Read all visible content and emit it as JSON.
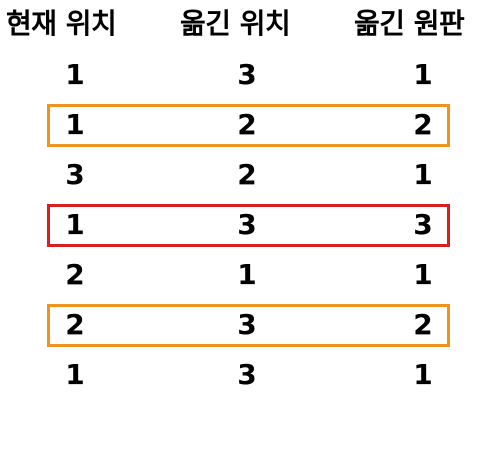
{
  "headers": [
    "현재 위치",
    "옮긴 위치",
    "옮긴 원판"
  ],
  "rows": [
    {
      "cells": [
        "1",
        "3",
        "1"
      ],
      "highlight": null
    },
    {
      "cells": [
        "1",
        "2",
        "2"
      ],
      "highlight": "#f0921e"
    },
    {
      "cells": [
        "3",
        "2",
        "1"
      ],
      "highlight": null
    },
    {
      "cells": [
        "1",
        "3",
        "3"
      ],
      "highlight": "#d61f1f"
    },
    {
      "cells": [
        "2",
        "1",
        "1"
      ],
      "highlight": null
    },
    {
      "cells": [
        "2",
        "3",
        "2"
      ],
      "highlight": "#f0921e"
    },
    {
      "cells": [
        "1",
        "3",
        "1"
      ],
      "highlight": null
    }
  ]
}
